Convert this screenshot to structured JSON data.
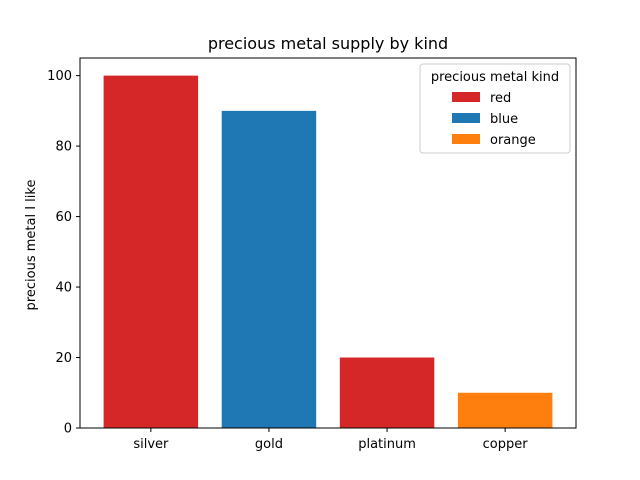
{
  "chart_data": {
    "type": "bar",
    "title": "precious metal supply by kind",
    "xlabel": "",
    "ylabel": "precious metal I like",
    "categories": [
      "silver",
      "gold",
      "platinum",
      "copper"
    ],
    "values": [
      100,
      90,
      20,
      10
    ],
    "bar_colors": [
      "#d62728",
      "#1f77b4",
      "#d62728",
      "#ff7f0e"
    ],
    "ylim": [
      0,
      105
    ],
    "yticks": [
      0,
      20,
      40,
      60,
      80,
      100
    ],
    "grid": false,
    "legend": {
      "title": "precious metal kind",
      "placement": "top-right",
      "entries": [
        {
          "label": "red",
          "color": "#d62728"
        },
        {
          "label": "blue",
          "color": "#1f77b4"
        },
        {
          "label": "orange",
          "color": "#ff7f0e"
        }
      ]
    }
  }
}
